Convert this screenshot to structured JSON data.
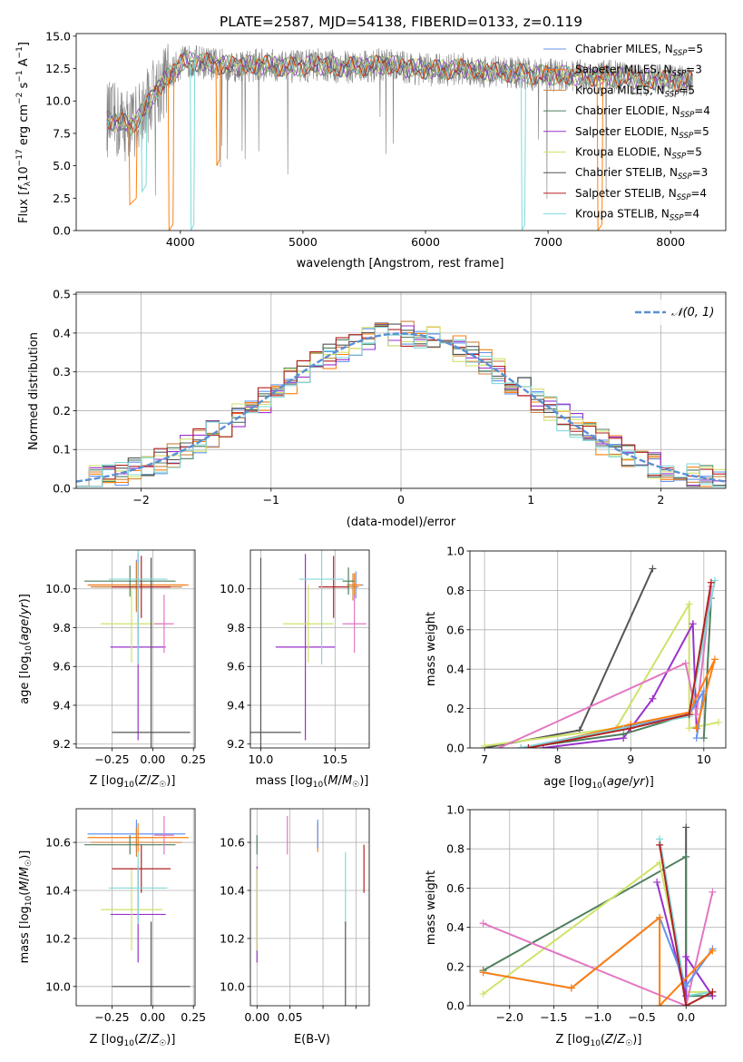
{
  "figure_title": "PLATE=2587, MJD=54138, FIBERID=0133, z=0.119",
  "colors": {
    "Chabrier MILES": "#6495ed",
    "Salpeter MILES": "#ff7f0e",
    "Kroupa MILES": "#cd853f",
    "Chabrier ELODIE": "#4f7f5f",
    "Salpeter ELODIE": "#9932cc",
    "Kroupa ELODIE": "#cfe36a",
    "Chabrier STELIB": "#555555",
    "Salpeter STELIB": "#b22222",
    "Kroupa STELIB": "#80dada",
    "pink": "#e377c2",
    "spectrum": "#808080"
  },
  "chart_data": [
    {
      "id": "spectrum",
      "type": "line",
      "xlabel": "wavelength [Angstrom, rest frame]",
      "ylabel": "Flux [f_λ 10^-17 erg cm^-2 s^-1 A^-1]",
      "xlim": [
        3150,
        8450
      ],
      "ylim": [
        0,
        15.2
      ],
      "xticks": [
        4000,
        5000,
        6000,
        7000,
        8000
      ],
      "yticks": [
        0.0,
        2.5,
        5.0,
        7.5,
        10.0,
        12.5,
        15.0
      ],
      "legend_location": "top-right",
      "legend": [
        {
          "model": "Chabrier MILES",
          "label": "Chabrier MILES, N_SSP=5"
        },
        {
          "model": "Salpeter MILES",
          "label": "Salpeter MILES, N_SSP=3"
        },
        {
          "model": "Kroupa MILES",
          "label": "Kroupa MILES, N_SSP=5"
        },
        {
          "model": "Chabrier ELODIE",
          "label": "Chabrier ELODIE, N_SSP=4"
        },
        {
          "model": "Salpeter ELODIE",
          "label": "Salpeter ELODIE, N_SSP=5"
        },
        {
          "model": "Kroupa ELODIE",
          "label": "Kroupa ELODIE, N_SSP=5"
        },
        {
          "model": "Chabrier STELIB",
          "label": "Chabrier STELIB, N_SSP=3"
        },
        {
          "model": "Salpeter STELIB",
          "label": "Salpeter STELIB, N_SSP=4"
        },
        {
          "model": "Kroupa STELIB",
          "label": "Kroupa STELIB, N_SSP=4"
        }
      ],
      "continuum": [
        [
          3400,
          8.6
        ],
        [
          3600,
          8.1
        ],
        [
          3700,
          9.2
        ],
        [
          3800,
          10.8
        ],
        [
          3900,
          11.8
        ],
        [
          4000,
          12.9
        ],
        [
          4100,
          13.1
        ],
        [
          4300,
          12.8
        ],
        [
          4500,
          12.7
        ],
        [
          4700,
          12.8
        ],
        [
          4900,
          12.6
        ],
        [
          5100,
          12.8
        ],
        [
          5300,
          12.6
        ],
        [
          5500,
          12.7
        ],
        [
          5700,
          12.8
        ],
        [
          5900,
          12.5
        ],
        [
          6100,
          12.4
        ],
        [
          6300,
          12.5
        ],
        [
          6500,
          12.3
        ],
        [
          6700,
          12.2
        ],
        [
          6900,
          12.0
        ],
        [
          7100,
          12.0
        ],
        [
          7300,
          11.9
        ],
        [
          7500,
          11.9
        ],
        [
          7700,
          11.7
        ],
        [
          7900,
          11.6
        ],
        [
          8150,
          11.5
        ]
      ],
      "dips": [
        [
          3580,
          3640,
          2
        ],
        [
          3680,
          3720,
          3
        ],
        [
          3900,
          3940,
          0
        ],
        [
          4080,
          4110,
          0
        ],
        [
          4290,
          4320,
          5
        ],
        [
          6780,
          6810,
          0
        ],
        [
          7400,
          7440,
          0
        ]
      ]
    },
    {
      "id": "residuals",
      "type": "histogram",
      "xlabel": "(data-model)/error",
      "ylabel": "Normed distribution",
      "xlim": [
        -2.5,
        2.5
      ],
      "ylim": [
        0,
        0.505
      ],
      "xticks": [
        -2,
        -1,
        0,
        1,
        2
      ],
      "yticks": [
        0.0,
        0.1,
        0.2,
        0.3,
        0.4,
        0.5
      ],
      "legend": [
        "N(0,1)"
      ],
      "legend_location": "top-right",
      "bin_width": 0.1,
      "reference_curve": "standard normal"
    },
    {
      "id": "age_vs_Z",
      "type": "scatter",
      "xlabel": "Z [log10(Z/Z☉)]",
      "ylabel": "age [log10(age/yr)]",
      "xlim": [
        -0.47,
        0.26
      ],
      "ylim": [
        9.18,
        10.2
      ],
      "xticks": [
        -0.25,
        0.0,
        0.25
      ],
      "yticks": [
        9.2,
        9.4,
        9.6,
        9.8,
        10.0
      ],
      "points": [
        {
          "model": "Chabrier MILES",
          "x": -0.1,
          "y": 10.02,
          "xerr": 0.3,
          "yerr": 0.13
        },
        {
          "model": "Salpeter MILES",
          "x": -0.09,
          "y": 10.02,
          "xerr": 0.31,
          "yerr": 0.12
        },
        {
          "model": "Kroupa MILES",
          "x": -0.1,
          "y": 10.01,
          "xerr": 0.28,
          "yerr": 0.13
        },
        {
          "model": "Chabrier ELODIE",
          "x": -0.14,
          "y": 10.04,
          "xerr": 0.28,
          "yerr": 0.08
        },
        {
          "model": "Salpeter ELODIE",
          "x": -0.09,
          "y": 9.7,
          "xerr": 0.17,
          "yerr": 0.48
        },
        {
          "model": "Kroupa ELODIE",
          "x": -0.13,
          "y": 9.82,
          "xerr": 0.19,
          "yerr": 0.2
        },
        {
          "model": "Chabrier STELIB",
          "x": -0.01,
          "y": 9.26,
          "xerr": 0.24,
          "yerr": 0.9
        },
        {
          "model": "Salpeter STELIB",
          "x": -0.07,
          "y": 10.01,
          "xerr": 0.18,
          "yerr": 0.16
        },
        {
          "model": "Kroupa STELIB",
          "x": -0.09,
          "y": 10.05,
          "xerr": 0.18,
          "yerr": 0.44
        },
        {
          "model": "pink",
          "x": 0.07,
          "y": 9.82,
          "xerr": 0.06,
          "yerr": 0.15
        }
      ]
    },
    {
      "id": "age_vs_mass",
      "type": "scatter",
      "xlabel": "mass [log10(M/M☉)]",
      "ylabel": "",
      "xlim": [
        9.93,
        10.73
      ],
      "ylim": [
        9.18,
        10.2
      ],
      "xticks": [
        10.0,
        10.5
      ],
      "yticks": [
        9.2,
        9.4,
        9.6,
        9.8,
        10.0
      ],
      "points": [
        {
          "model": "Chabrier MILES",
          "x": 10.64,
          "y": 10.02,
          "xerr": 0.05,
          "yerr": 0.07
        },
        {
          "model": "Salpeter MILES",
          "x": 10.63,
          "y": 10.02,
          "xerr": 0.05,
          "yerr": 0.06
        },
        {
          "model": "Kroupa MILES",
          "x": 10.62,
          "y": 10.01,
          "xerr": 0.04,
          "yerr": 0.07
        },
        {
          "model": "Chabrier ELODIE",
          "x": 10.59,
          "y": 10.04,
          "xerr": 0.04,
          "yerr": 0.07
        },
        {
          "model": "Salpeter ELODIE",
          "x": 10.3,
          "y": 9.7,
          "xerr": 0.2,
          "yerr": 0.48
        },
        {
          "model": "Kroupa ELODIE",
          "x": 10.32,
          "y": 9.82,
          "xerr": 0.17,
          "yerr": 0.2
        },
        {
          "model": "Chabrier STELIB",
          "x": 10.0,
          "y": 9.26,
          "xerr": 0.27,
          "yerr": 0.9
        },
        {
          "model": "Salpeter STELIB",
          "x": 10.49,
          "y": 10.01,
          "xerr": 0.1,
          "yerr": 0.16
        },
        {
          "model": "Kroupa STELIB",
          "x": 10.41,
          "y": 10.05,
          "xerr": 0.15,
          "yerr": 0.44
        },
        {
          "model": "pink",
          "x": 10.63,
          "y": 9.82,
          "xerr": 0.08,
          "yerr": 0.15
        }
      ]
    },
    {
      "id": "mass_weight_vs_age",
      "type": "line",
      "xlabel": "age [log10(age/yr)]",
      "ylabel": "mass weight",
      "xlim": [
        6.8,
        10.3
      ],
      "ylim": [
        0,
        1.0
      ],
      "xticks": [
        7,
        8,
        9,
        10
      ],
      "yticks": [
        0.0,
        0.2,
        0.4,
        0.6,
        0.8,
        1.0
      ],
      "series": [
        {
          "model": "Chabrier STELIB",
          "points": [
            [
              7.0,
              0.0
            ],
            [
              8.3,
              0.09
            ],
            [
              9.3,
              0.91
            ]
          ]
        },
        {
          "model": "Kroupa ELODIE",
          "points": [
            [
              7.0,
              0.01
            ],
            [
              8.8,
              0.1
            ],
            [
              9.8,
              0.73
            ],
            [
              9.8,
              0.1
            ],
            [
              10.2,
              0.13
            ]
          ]
        },
        {
          "model": "Salpeter ELODIE",
          "points": [
            [
              7.8,
              0.0
            ],
            [
              8.9,
              0.05
            ],
            [
              9.3,
              0.25
            ],
            [
              9.85,
              0.63
            ],
            [
              9.9,
              0.1
            ]
          ]
        },
        {
          "model": "Chabrier ELODIE",
          "points": [
            [
              7.5,
              0.0
            ],
            [
              8.9,
              0.07
            ],
            [
              9.8,
              0.17
            ],
            [
              10.1,
              0.76
            ],
            [
              10.0,
              0.05
            ]
          ]
        },
        {
          "model": "pink",
          "points": [
            [
              7.2,
              0.0
            ],
            [
              9.75,
              0.43
            ],
            [
              9.9,
              0.17
            ],
            [
              10.1,
              0.82
            ]
          ]
        },
        {
          "model": "Chabrier MILES",
          "points": [
            [
              7.5,
              0.0
            ],
            [
              9.0,
              0.11
            ],
            [
              9.8,
              0.17
            ],
            [
              10.0,
              0.29
            ],
            [
              9.9,
              0.05
            ]
          ]
        },
        {
          "model": "Salpeter MILES",
          "points": [
            [
              7.6,
              0.0
            ],
            [
              9.0,
              0.12
            ],
            [
              9.8,
              0.18
            ],
            [
              10.15,
              0.45
            ],
            [
              9.9,
              0.1
            ]
          ]
        },
        {
          "model": "Kroupa STELIB",
          "points": [
            [
              7.5,
              0.0
            ],
            [
              8.9,
              0.1
            ],
            [
              9.8,
              0.16
            ],
            [
              10.15,
              0.85
            ]
          ]
        },
        {
          "model": "Salpeter STELIB",
          "points": [
            [
              7.6,
              0.0
            ],
            [
              9.0,
              0.1
            ],
            [
              9.8,
              0.17
            ],
            [
              10.1,
              0.84
            ]
          ]
        }
      ]
    },
    {
      "id": "mass_vs_Z",
      "type": "scatter",
      "xlabel": "Z [log10(Z/Z☉)]",
      "ylabel": "mass [log10(M/M☉)]",
      "xlim": [
        -0.47,
        0.26
      ],
      "ylim": [
        9.92,
        10.74
      ],
      "xticks": [
        -0.25,
        0.0,
        0.25
      ],
      "yticks": [
        10.0,
        10.2,
        10.4,
        10.6
      ],
      "points": [
        {
          "model": "Chabrier MILES",
          "x": -0.1,
          "y": 10.635,
          "xerr": 0.3,
          "yerr": 0.06
        },
        {
          "model": "Salpeter MILES",
          "x": -0.09,
          "y": 10.62,
          "xerr": 0.31,
          "yerr": 0.06
        },
        {
          "model": "Kroupa MILES",
          "x": -0.1,
          "y": 10.6,
          "xerr": 0.28,
          "yerr": 0.06
        },
        {
          "model": "Chabrier ELODIE",
          "x": -0.14,
          "y": 10.59,
          "xerr": 0.28,
          "yerr": 0.04
        },
        {
          "model": "Salpeter ELODIE",
          "x": -0.09,
          "y": 10.3,
          "xerr": 0.17,
          "yerr": 0.2
        },
        {
          "model": "Kroupa ELODIE",
          "x": -0.13,
          "y": 10.32,
          "xerr": 0.19,
          "yerr": 0.17
        },
        {
          "model": "Chabrier STELIB",
          "x": -0.01,
          "y": 10.0,
          "xerr": 0.24,
          "yerr": 0.27
        },
        {
          "model": "Salpeter STELIB",
          "x": -0.07,
          "y": 10.49,
          "xerr": 0.18,
          "yerr": 0.1
        },
        {
          "model": "Kroupa STELIB",
          "x": -0.09,
          "y": 10.41,
          "xerr": 0.18,
          "yerr": 0.15
        },
        {
          "model": "pink",
          "x": 0.07,
          "y": 10.63,
          "xerr": 0.06,
          "yerr": 0.08
        }
      ]
    },
    {
      "id": "mass_vs_ebv",
      "type": "scatter",
      "xlabel": "E(B-V)",
      "ylabel": "",
      "xlim": [
        -0.005,
        0.085
      ],
      "ylim": [
        9.92,
        10.74
      ],
      "xticks": [
        0.0,
        0.025,
        0.05,
        0.075
      ],
      "xticklabels": [
        "0.00",
        "0.05"
      ],
      "yticks": [
        10.0,
        10.2,
        10.4,
        10.6
      ],
      "points": [
        {
          "model": "Salpeter ELODIE",
          "x": 0.0,
          "y": 10.3,
          "yerr": 0.2
        },
        {
          "model": "Kroupa ELODIE",
          "x": 0.0,
          "y": 10.32,
          "yerr": 0.17
        },
        {
          "model": "Chabrier ELODIE",
          "x": 0.0,
          "y": 10.59,
          "yerr": 0.04
        },
        {
          "model": "pink",
          "x": 0.023,
          "y": 10.63,
          "yerr": 0.08
        },
        {
          "model": "Salpeter MILES",
          "x": 0.046,
          "y": 10.62,
          "yerr": 0.06
        },
        {
          "model": "Chabrier MILES",
          "x": 0.046,
          "y": 10.635,
          "yerr": 0.06
        },
        {
          "model": "Kroupa STELIB",
          "x": 0.067,
          "y": 10.41,
          "yerr": 0.15
        },
        {
          "model": "Chabrier STELIB",
          "x": 0.067,
          "y": 10.0,
          "yerr": 0.27
        },
        {
          "model": "Salpeter STELIB",
          "x": 0.081,
          "y": 10.49,
          "yerr": 0.1
        }
      ]
    },
    {
      "id": "mass_weight_vs_Z",
      "type": "line",
      "xlabel": "Z [log10(Z/Z☉)]",
      "ylabel": "mass weight",
      "xlim": [
        -2.45,
        0.45
      ],
      "ylim": [
        0,
        1.0
      ],
      "xticks": [
        -2.0,
        -1.5,
        -1.0,
        -0.5,
        0.0
      ],
      "yticks": [
        0.0,
        0.2,
        0.4,
        0.6,
        0.8,
        1.0
      ],
      "series": [
        {
          "model": "Chabrier STELIB",
          "points": [
            [
              0.0,
              0.91
            ],
            [
              0.0,
              0.0
            ]
          ]
        },
        {
          "model": "Chabrier ELODIE",
          "points": [
            [
              -2.3,
              0.18
            ],
            [
              0.0,
              0.76
            ],
            [
              0.0,
              0.05
            ],
            [
              0.3,
              0.05
            ]
          ]
        },
        {
          "model": "Kroupa ELODIE",
          "points": [
            [
              -2.3,
              0.06
            ],
            [
              -0.3,
              0.73
            ],
            [
              0.0,
              0.07
            ],
            [
              0.3,
              0.07
            ]
          ]
        },
        {
          "model": "Kroupa STELIB",
          "points": [
            [
              -0.3,
              0.85
            ],
            [
              0.0,
              0.05
            ],
            [
              0.3,
              0.07
            ]
          ]
        },
        {
          "model": "Salpeter ELODIE",
          "points": [
            [
              -0.33,
              0.63
            ],
            [
              0.0,
              0.05
            ],
            [
              0.0,
              0.25
            ],
            [
              0.3,
              0.05
            ]
          ]
        },
        {
          "model": "pink",
          "points": [
            [
              -2.3,
              0.42
            ],
            [
              0.0,
              0.0
            ],
            [
              0.3,
              0.58
            ]
          ]
        },
        {
          "model": "Chabrier MILES",
          "points": [
            [
              -2.3,
              0.17
            ],
            [
              -1.3,
              0.09
            ],
            [
              -0.3,
              0.45
            ],
            [
              0.0,
              0.1
            ],
            [
              0.3,
              0.29
            ]
          ]
        },
        {
          "model": "Salpeter MILES",
          "points": [
            [
              -2.3,
              0.17
            ],
            [
              -1.3,
              0.09
            ],
            [
              -0.3,
              0.45
            ],
            [
              -0.3,
              0.0
            ],
            [
              0.3,
              0.28
            ]
          ]
        },
        {
          "model": "Salpeter STELIB",
          "points": [
            [
              -0.3,
              0.82
            ],
            [
              0.0,
              0.0
            ],
            [
              0.3,
              0.07
            ]
          ]
        }
      ]
    }
  ]
}
